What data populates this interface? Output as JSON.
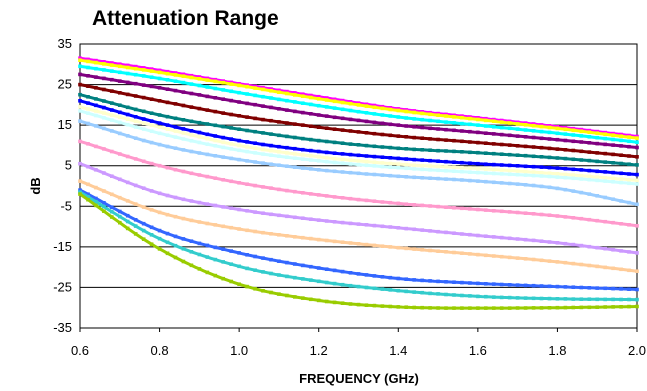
{
  "chart_data": {
    "type": "line",
    "title": "Attenuation Range",
    "xlabel": "FREQUENCY (GHz)",
    "ylabel": "dB",
    "xlim": [
      0.6,
      2.0
    ],
    "ylim": [
      -35,
      35
    ],
    "x_ticks": [
      "0.6",
      "0.8",
      "1.0",
      "1.2",
      "1.4",
      "1.6",
      "1.8",
      "2.0"
    ],
    "y_ticks": [
      "35",
      "25",
      "15",
      "5",
      "-5",
      "-15",
      "-25",
      "-35"
    ],
    "grid": true,
    "legend": "none",
    "x": [
      0.6,
      0.8,
      1.0,
      1.2,
      1.4,
      1.6,
      1.8,
      2.0
    ],
    "series": [
      {
        "color": "#FF00FF",
        "values": [
          31.5,
          28.5,
          25.2,
          22.0,
          19.0,
          16.8,
          14.6,
          12.2
        ]
      },
      {
        "color": "#FFFF00",
        "values": [
          31.0,
          28.0,
          24.8,
          21.5,
          18.6,
          16.4,
          14.2,
          11.8
        ]
      },
      {
        "color": "#00FFFF",
        "values": [
          29.5,
          26.5,
          23.0,
          19.8,
          17.0,
          15.0,
          13.0,
          10.8
        ]
      },
      {
        "color": "#800080",
        "values": [
          27.5,
          24.2,
          20.7,
          17.5,
          15.0,
          13.2,
          11.4,
          9.5
        ]
      },
      {
        "color": "#800000",
        "values": [
          25.0,
          21.0,
          17.3,
          14.5,
          12.3,
          10.7,
          9.1,
          7.2
        ]
      },
      {
        "color": "#008080",
        "values": [
          22.5,
          17.5,
          14.0,
          11.2,
          9.3,
          8.2,
          6.9,
          5.2
        ]
      },
      {
        "color": "#0000FF",
        "values": [
          21.0,
          15.5,
          11.2,
          8.5,
          6.8,
          5.5,
          4.4,
          2.8
        ]
      },
      {
        "color": "#FFFFCC",
        "values": [
          19.5,
          14.5,
          10.0,
          7.2,
          5.4,
          4.3,
          3.0,
          1.4
        ]
      },
      {
        "color": "#CCFFFF",
        "values": [
          18.5,
          13.0,
          8.8,
          6.2,
          4.5,
          3.3,
          2.2,
          0.5
        ]
      },
      {
        "color": "#99CCFF",
        "values": [
          16.0,
          10.2,
          6.5,
          4.0,
          2.4,
          1.2,
          -0.6,
          -4.5
        ]
      },
      {
        "color": "#FF99CC",
        "values": [
          11.0,
          5.0,
          0.8,
          -2.2,
          -4.3,
          -5.8,
          -7.4,
          -9.8
        ]
      },
      {
        "color": "#CC99FF",
        "values": [
          5.5,
          -1.8,
          -5.8,
          -8.4,
          -10.3,
          -12.2,
          -14.0,
          -16.5
        ]
      },
      {
        "color": "#FFCC99",
        "values": [
          1.2,
          -6.5,
          -10.6,
          -13.2,
          -15.2,
          -16.9,
          -18.7,
          -21.0
        ]
      },
      {
        "color": "#3366FF",
        "values": [
          -1.0,
          -11.0,
          -16.5,
          -20.2,
          -22.8,
          -24.0,
          -24.8,
          -25.5
        ]
      },
      {
        "color": "#33CCCC",
        "values": [
          -1.5,
          -13.0,
          -19.8,
          -23.5,
          -25.8,
          -27.2,
          -27.8,
          -28.0
        ]
      },
      {
        "color": "#99CC00",
        "values": [
          -2.0,
          -15.5,
          -24.2,
          -28.2,
          -29.8,
          -30.1,
          -30.0,
          -29.7
        ]
      }
    ]
  }
}
